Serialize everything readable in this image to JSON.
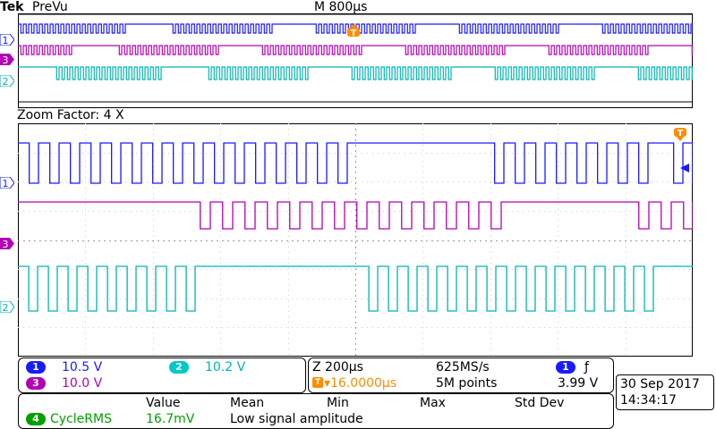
{
  "header": {
    "brand": "Tek",
    "mode": "PreVu",
    "timebase": "M 800µs",
    "trigger_marker": "T"
  },
  "zoom": {
    "label": "Zoom Factor: 4 X"
  },
  "channels": [
    {
      "num": "1",
      "color": "#1a1aff",
      "scale": "10.5 V"
    },
    {
      "num": "3",
      "color": "#b400b4",
      "scale": "10.0 V"
    },
    {
      "num": "2",
      "color": "#00b4b4",
      "scale": "10.2 V"
    }
  ],
  "zoom_panel": {
    "zoom_time": "Z 200µs",
    "trigger_pos": "▾16.0000µs",
    "sample_rate": "625MS/s",
    "record_length": "5M points",
    "trigger_source": "1",
    "trigger_slope": "ƒ",
    "trigger_level": "3.99 V"
  },
  "measurement": {
    "headers": [
      "Value",
      "Mean",
      "Min",
      "Max",
      "Std Dev"
    ],
    "channel": "4",
    "channel_color": "#00a000",
    "name": "CycleRMS",
    "value": "16.7mV",
    "note": "Low signal amplitude"
  },
  "datetime": {
    "date": "30 Sep  2017",
    "time": "14:34:17"
  }
}
